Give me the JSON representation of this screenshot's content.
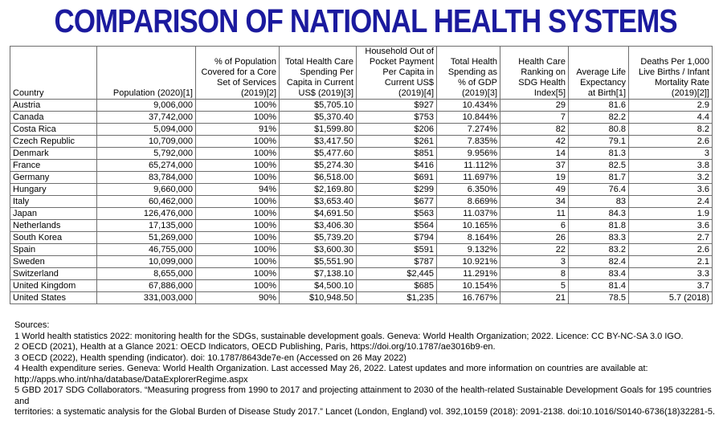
{
  "title": "COMPARISON OF NATIONAL HEALTH SYSTEMS",
  "colors": {
    "title": "#1b1a9e",
    "table_border": "#6e6e6e",
    "text": "#000000",
    "background": "#ffffff"
  },
  "table": {
    "columns": [
      "Country",
      "Population (2020)[1]",
      "% of Population Covered for a Core Set of Services (2019)[2]",
      "Total Health Care Spending Per Capita in Current US$ (2019)[3]",
      "Household Out of Pocket Payment Per Capita in Current US$ (2019)[4]",
      "Total Health Spending as % of GDP (2019)[3]",
      "Health Care Ranking on SDG Health Index[5]",
      "Average Life Expectancy at Birth[1]",
      "Deaths Per 1,000 Live Births / Infant Mortality Rate (2019)[2]]"
    ],
    "rows": [
      [
        "Austria",
        "9,006,000",
        "100%",
        "$5,705.10",
        "$927",
        "10.434%",
        "29",
        "81.6",
        "2.9"
      ],
      [
        "Canada",
        "37,742,000",
        "100%",
        "$5,370.40",
        "$753",
        "10.844%",
        "7",
        "82.2",
        "4.4"
      ],
      [
        "Costa Rica",
        "5,094,000",
        "91%",
        "$1,599.80",
        "$206",
        "7.274%",
        "82",
        "80.8",
        "8.2"
      ],
      [
        "Czech Republic",
        "10,709,000",
        "100%",
        "$3,417.50",
        "$261",
        "7.835%",
        "42",
        "79.1",
        "2.6"
      ],
      [
        "Denmark",
        "5,792,000",
        "100%",
        "$5,477.60",
        "$851",
        "9.956%",
        "14",
        "81.3",
        "3"
      ],
      [
        "France",
        "65,274,000",
        "100%",
        "$5,274.30",
        "$416",
        "11.112%",
        "37",
        "82.5",
        "3.8"
      ],
      [
        "Germany",
        "83,784,000",
        "100%",
        "$6,518.00",
        "$691",
        "11.697%",
        "19",
        "81.7",
        "3.2"
      ],
      [
        "Hungary",
        "9,660,000",
        "94%",
        "$2,169.80",
        "$299",
        "6.350%",
        "49",
        "76.4",
        "3.6"
      ],
      [
        "Italy",
        "60,462,000",
        "100%",
        "$3,653.40",
        "$677",
        "8.669%",
        "34",
        "83",
        "2.4"
      ],
      [
        "Japan",
        "126,476,000",
        "100%",
        "$4,691.50",
        "$563",
        "11.037%",
        "11",
        "84.3",
        "1.9"
      ],
      [
        "Netherlands",
        "17,135,000",
        "100%",
        "$3,406.30",
        "$564",
        "10.165%",
        "6",
        "81.8",
        "3.6"
      ],
      [
        "South Korea",
        "51,269,000",
        "100%",
        "$5,739.20",
        "$794",
        "8.164%",
        "26",
        "83.3",
        "2.7"
      ],
      [
        "Spain",
        "46,755,000",
        "100%",
        "$3,600.30",
        "$591",
        "9.132%",
        "22",
        "83.2",
        "2.6"
      ],
      [
        "Sweden",
        "10,099,000",
        "100%",
        "$5,551.90",
        "$787",
        "10.921%",
        "3",
        "82.4",
        "2.1"
      ],
      [
        "Switzerland",
        "8,655,000",
        "100%",
        "$7,138.10",
        "$2,445",
        "11.291%",
        "8",
        "83.4",
        "3.3"
      ],
      [
        "United Kingdom",
        "67,886,000",
        "100%",
        "$4,500.10",
        "$685",
        "10.154%",
        "5",
        "81.4",
        "3.7"
      ],
      [
        "United States",
        "331,003,000",
        "90%",
        "$10,948.50",
        "$1,235",
        "16.767%",
        "21",
        "78.5",
        "5.7 (2018)"
      ]
    ]
  },
  "sources": {
    "heading": "Sources:",
    "lines": [
      "1  World health statistics 2022: monitoring health for the SDGs, sustainable development goals. Geneva: World Health Organization; 2022. Licence: CC BY-NC-SA 3.0 IGO.",
      "2 OECD (2021), Health at a Glance 2021: OECD Indicators, OECD Publishing, Paris, https://doi.org/10.1787/ae3016b9-en.",
      "3 OECD (2022), Health spending (indicator). doi: 10.1787/8643de7e-en (Accessed on 26 May 2022)",
      "4 Health expenditure series. Geneva: World Health Organization. Last accessed May 26, 2022. Latest updates and more information on countries are available at:",
      "http://apps.who.int/nha/database/DataExplorerRegime.aspx",
      "5 GBD 2017 SDG Collaborators. “Measuring progress from 1990 to 2017 and projecting attainment to 2030 of the health-related Sustainable Development Goals for 195 countries and",
      "territories: a systematic analysis for the Global Burden of Disease Study 2017.” Lancet (London, England) vol. 392,10159 (2018): 2091-2138. doi:10.1016/S0140-6736(18)32281-5."
    ]
  }
}
